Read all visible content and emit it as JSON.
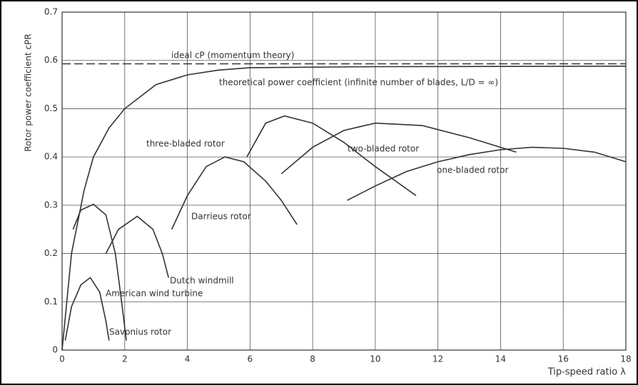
{
  "chart_data": {
    "type": "line",
    "y_label": "Rotor power coefficient cPR",
    "x_label": "Tip-speed ratio λ",
    "xlim": [
      0,
      18
    ],
    "ylim": [
      0,
      0.7
    ],
    "xticks": [
      0,
      2,
      4,
      6,
      8,
      10,
      12,
      14,
      16,
      18
    ],
    "yticks": [
      0,
      0.1,
      0.2,
      0.3,
      0.4,
      0.5,
      0.6,
      0.7
    ],
    "grid": true,
    "series": [
      {
        "name": "ideal cP (momentum theory)",
        "color": "#333333",
        "dashed": true,
        "x": [
          0,
          18
        ],
        "values": [
          0.593,
          0.593
        ]
      },
      {
        "name": "theoretical power coefficient (infinite number of blades, L/D = ∞)",
        "color": "#333333",
        "x": [
          0,
          0.3,
          0.7,
          1,
          1.5,
          2,
          3,
          4,
          5,
          6,
          10,
          18
        ],
        "values": [
          0,
          0.2,
          0.33,
          0.4,
          0.46,
          0.5,
          0.55,
          0.57,
          0.58,
          0.585,
          0.587,
          0.588
        ]
      },
      {
        "name": "three-bladed rotor",
        "color": "#333333",
        "x": [
          5.9,
          6.5,
          7.1,
          8,
          9,
          10,
          11.3
        ],
        "values": [
          0.4,
          0.47,
          0.485,
          0.47,
          0.43,
          0.38,
          0.32
        ]
      },
      {
        "name": "two-bladed rotor",
        "color": "#333333",
        "x": [
          7,
          8,
          9,
          10,
          11.5,
          13,
          14.5
        ],
        "values": [
          0.365,
          0.42,
          0.455,
          0.47,
          0.465,
          0.44,
          0.41
        ]
      },
      {
        "name": "one-bladed rotor",
        "color": "#333333",
        "x": [
          9.1,
          10,
          11,
          12,
          13,
          14,
          15,
          16,
          17,
          18
        ],
        "values": [
          0.31,
          0.34,
          0.37,
          0.39,
          0.405,
          0.415,
          0.42,
          0.418,
          0.41,
          0.39
        ]
      },
      {
        "name": "Darrieus rotor",
        "color": "#333333",
        "x": [
          3.5,
          4,
          4.6,
          5.2,
          5.8,
          6.5,
          7,
          7.5
        ],
        "values": [
          0.25,
          0.32,
          0.38,
          0.4,
          0.39,
          0.35,
          0.31,
          0.26
        ]
      },
      {
        "name": "Dutch windmill",
        "color": "#333333",
        "x": [
          1.4,
          1.8,
          2.4,
          2.9,
          3.2,
          3.4
        ],
        "values": [
          0.2,
          0.25,
          0.277,
          0.25,
          0.2,
          0.15
        ]
      },
      {
        "name": "American wind turbine",
        "color": "#333333",
        "x": [
          0.35,
          0.6,
          1,
          1.4,
          1.7,
          1.9,
          2.05
        ],
        "values": [
          0.25,
          0.29,
          0.302,
          0.28,
          0.2,
          0.1,
          0.02
        ]
      },
      {
        "name": "Savonius rotor",
        "color": "#333333",
        "x": [
          0.1,
          0.3,
          0.6,
          0.9,
          1.2,
          1.4,
          1.5
        ],
        "values": [
          0.02,
          0.09,
          0.135,
          0.15,
          0.12,
          0.06,
          0.02
        ]
      }
    ]
  }
}
